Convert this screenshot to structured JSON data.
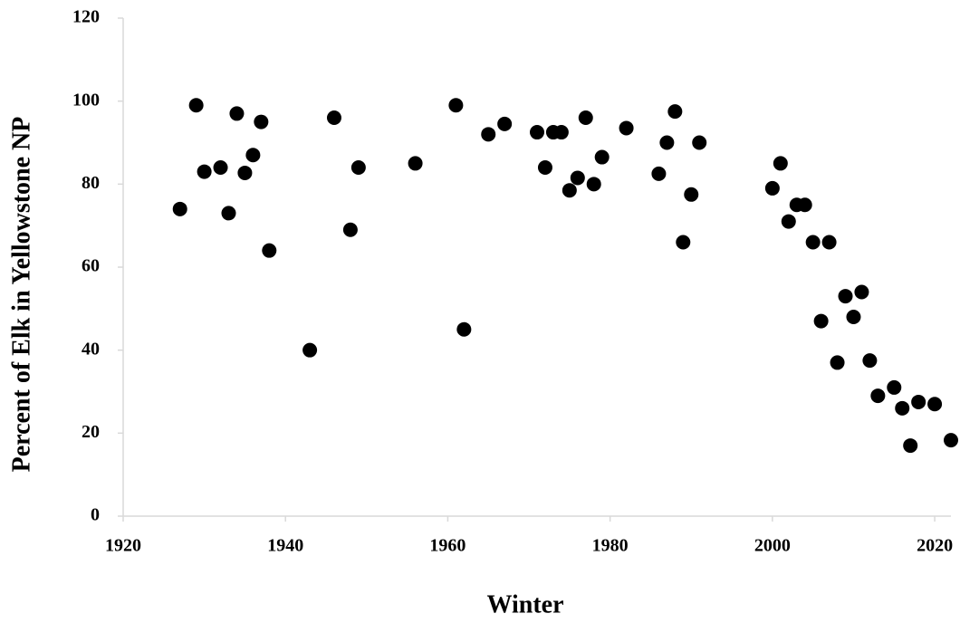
{
  "chart_data": {
    "type": "scatter",
    "xlabel": "Winter",
    "ylabel": "Percent of Elk  in  Yellowstone  NP",
    "color": "#000000",
    "x": [
      1927,
      1929,
      1930,
      1932,
      1933,
      1934,
      1935,
      1936,
      1937,
      1938,
      1943,
      1946,
      1948,
      1949,
      1956,
      1961,
      1962,
      1965,
      1967,
      1971,
      1972,
      1973,
      1974,
      1975,
      1976,
      1977,
      1978,
      1979,
      1982,
      1986,
      1987,
      1988,
      1989,
      1990,
      1991,
      2000,
      2001,
      2002,
      2003,
      2004,
      2005,
      2006,
      2007,
      2008,
      2009,
      2010,
      2011,
      2012,
      2013,
      2015,
      2016,
      2017,
      2018,
      2020,
      2022
    ],
    "values": [
      74,
      99,
      83,
      84,
      73,
      97,
      82.7,
      87,
      95,
      64,
      40,
      96,
      69,
      84,
      85,
      99,
      45,
      92,
      94.5,
      92.5,
      84,
      92.5,
      92.5,
      78.5,
      81.5,
      96,
      80,
      86.5,
      93.5,
      82.5,
      90,
      97.5,
      66,
      77.5,
      90,
      79,
      85,
      71,
      75,
      75,
      66,
      47,
      66,
      37,
      53,
      48,
      54,
      37.5,
      29,
      31,
      26,
      17,
      27.5,
      27,
      18.3
    ],
    "xlim": [
      1920,
      2022
    ],
    "xticks": [
      1920,
      1940,
      1960,
      1980,
      2000,
      2020
    ],
    "ylim": [
      0,
      120
    ],
    "yticks": [
      0,
      20,
      40,
      60,
      80,
      100,
      120
    ]
  }
}
